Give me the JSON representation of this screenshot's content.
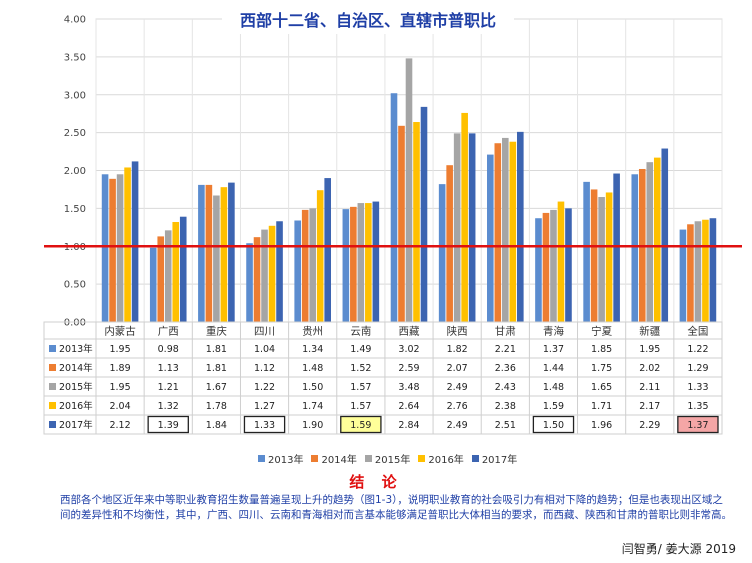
{
  "chart_data": {
    "type": "bar",
    "title": "西部十二省、自治区、直辖市普职比",
    "categories": [
      "内蒙古",
      "广西",
      "重庆",
      "四川",
      "贵州",
      "云南",
      "西藏",
      "陕西",
      "甘肃",
      "青海",
      "宁夏",
      "新疆",
      "全国"
    ],
    "series": [
      {
        "name": "2013年",
        "color": "#5b8ccf",
        "values": [
          1.95,
          0.98,
          1.81,
          1.04,
          1.34,
          1.49,
          3.02,
          1.82,
          2.21,
          1.37,
          1.85,
          1.95,
          1.22
        ]
      },
      {
        "name": "2014年",
        "color": "#ed7d31",
        "values": [
          1.89,
          1.13,
          1.81,
          1.12,
          1.48,
          1.52,
          2.59,
          2.07,
          2.36,
          1.44,
          1.75,
          2.02,
          1.29
        ]
      },
      {
        "name": "2015年",
        "color": "#a5a5a5",
        "values": [
          1.95,
          1.21,
          1.67,
          1.22,
          1.5,
          1.57,
          3.48,
          2.49,
          2.43,
          1.48,
          1.65,
          2.11,
          1.33
        ]
      },
      {
        "name": "2016年",
        "color": "#ffc000",
        "values": [
          2.04,
          1.32,
          1.78,
          1.27,
          1.74,
          1.57,
          2.64,
          2.76,
          2.38,
          1.59,
          1.71,
          2.17,
          1.35
        ]
      },
      {
        "name": "2017年",
        "color": "#3c64b1",
        "values": [
          2.12,
          1.39,
          1.84,
          1.33,
          1.9,
          1.59,
          2.84,
          2.49,
          2.51,
          1.5,
          1.96,
          2.29,
          1.37
        ]
      }
    ],
    "ylim": [
      0,
      4
    ],
    "yticks": [
      "0.00",
      "0.50",
      "1.00",
      "1.50",
      "2.00",
      "2.50",
      "3.00",
      "3.50",
      "4.00"
    ],
    "table_labels": [
      [
        "1.95",
        "0.98",
        "1.81",
        "1.04",
        "1.34",
        "1.49",
        "3.02",
        "1.82",
        "2.21",
        "1.37",
        "1.85",
        "1.95",
        "1.22"
      ],
      [
        "1.89",
        "1.13",
        "1.81",
        "1.12",
        "1.48",
        "1.52",
        "2.59",
        "2.07",
        "2.36",
        "1.44",
        "1.75",
        "2.02",
        "1.29"
      ],
      [
        "1.95",
        "1.21",
        "1.67",
        "1.22",
        "1.50",
        "1.57",
        "3.48",
        "2.49",
        "2.43",
        "1.48",
        "1.65",
        "2.11",
        "1.33"
      ],
      [
        "2.04",
        "1.32",
        "1.78",
        "1.27",
        "1.74",
        "1.57",
        "2.64",
        "2.76",
        "2.38",
        "1.59",
        "1.71",
        "2.17",
        "1.35"
      ],
      [
        "2.12",
        "1.39",
        "1.84",
        "1.33",
        "1.90",
        "1.59",
        "2.84",
        "2.49",
        "2.51",
        "1.50",
        "1.96",
        "2.29",
        "1.37"
      ]
    ],
    "reference_line": 1.0,
    "reference_color": "#e01010",
    "highlighted_cells": [
      {
        "series": 4,
        "category": 1,
        "fill": "#ffffff",
        "text_color": "#c13dbd"
      },
      {
        "series": 4,
        "category": 3,
        "fill": "#ffffff",
        "text_color": "#c13dbd"
      },
      {
        "series": 4,
        "category": 5,
        "fill": "#ffff99",
        "text_color": "#222222"
      },
      {
        "series": 4,
        "category": 9,
        "fill": "#ffffff",
        "text_color": "#c13dbd"
      },
      {
        "series": 4,
        "category": 12,
        "fill": "#f4a6a6",
        "text_color": "#222222"
      }
    ],
    "legend_position": "bottom",
    "grid": true
  },
  "conclusion": {
    "title": "结 论",
    "text": "西部各个地区近年来中等职业教育招生数量普遍呈现上升的趋势（图1-3），说明职业教育的社会吸引力有相对下降的趋势；但是也表现出区域之间的差异性和不均衡性，其中，广西、四川、云南和青海相对而言基本能够满足普职比大体相当的要求，而西藏、陕西和甘肃的普职比则非常高。"
  },
  "credit": "闫智勇/ 姜大源   2019"
}
